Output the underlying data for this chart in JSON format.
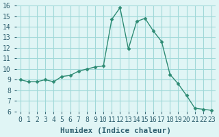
{
  "x": [
    0,
    1,
    2,
    3,
    4,
    5,
    6,
    7,
    8,
    9,
    10,
    11,
    12,
    13,
    14,
    15,
    16,
    17,
    18,
    19,
    20,
    21,
    22,
    23
  ],
  "y": [
    9.0,
    8.8,
    8.8,
    9.0,
    8.8,
    9.3,
    9.4,
    9.8,
    10.0,
    10.2,
    10.3,
    14.7,
    15.8,
    11.9,
    14.5,
    14.8,
    13.6,
    12.6,
    9.5,
    8.6,
    7.5,
    6.3,
    6.2,
    6.1
  ],
  "xlabel": "Humidex (Indice chaleur)",
  "xlim": [
    -0.5,
    23.5
  ],
  "ylim": [
    6,
    16
  ],
  "yticks": [
    6,
    7,
    8,
    9,
    10,
    11,
    12,
    13,
    14,
    15,
    16
  ],
  "xticks": [
    0,
    1,
    2,
    3,
    4,
    5,
    6,
    7,
    8,
    9,
    10,
    11,
    12,
    13,
    14,
    15,
    16,
    17,
    18,
    19,
    20,
    21,
    22,
    23
  ],
  "line_color": "#2e8b74",
  "marker_color": "#2e8b74",
  "bg_color": "#e0f5f5",
  "grid_color": "#a0d8d8",
  "font_color": "#2e5f6e",
  "xlabel_fontsize": 8,
  "tick_fontsize": 7
}
